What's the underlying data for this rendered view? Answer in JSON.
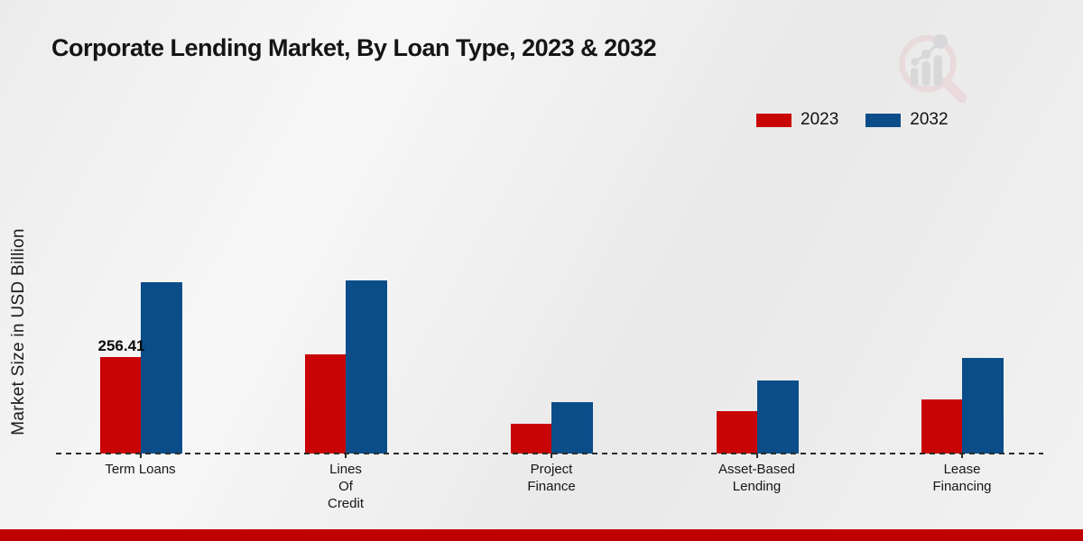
{
  "title": "Corporate Lending Market, By Loan Type, 2023 & 2032",
  "watermark_icon": "market-research-magnifier-chart-watermark",
  "footer_bar_color": "#c00000",
  "chart_data": {
    "type": "bar",
    "title": "Corporate Lending Market, By Loan Type, 2023 & 2032",
    "ylabel": "Market Size in USD Billion",
    "xlabel": "",
    "categories": [
      "Term Loans",
      "Lines Of Credit",
      "Project Finance",
      "Asset-Based Lending",
      "Lease Financing"
    ],
    "category_label_lines": [
      [
        "Term Loans"
      ],
      [
        "Lines",
        "Of",
        "Credit"
      ],
      [
        "Project",
        "Finance"
      ],
      [
        "Asset-Based",
        "Lending"
      ],
      [
        "Lease",
        "Financing"
      ]
    ],
    "series": [
      {
        "name": "2023",
        "color": "#c90404",
        "values": [
          256.41,
          263.2,
          79.1,
          112.7,
          143.9
        ],
        "value_labels": [
          "256.41",
          "",
          "",
          "",
          ""
        ]
      },
      {
        "name": "2032",
        "color": "#0a4d89",
        "values": [
          455.3,
          460.4,
          136.7,
          194.2,
          254.1
        ],
        "value_labels": [
          "",
          "",
          "",
          "",
          ""
        ]
      }
    ],
    "ylim": [
      0,
      500
    ],
    "grid": false,
    "y_axis_ticks_shown": false,
    "baseline_style": "dashed",
    "legend_position": "top-right"
  }
}
